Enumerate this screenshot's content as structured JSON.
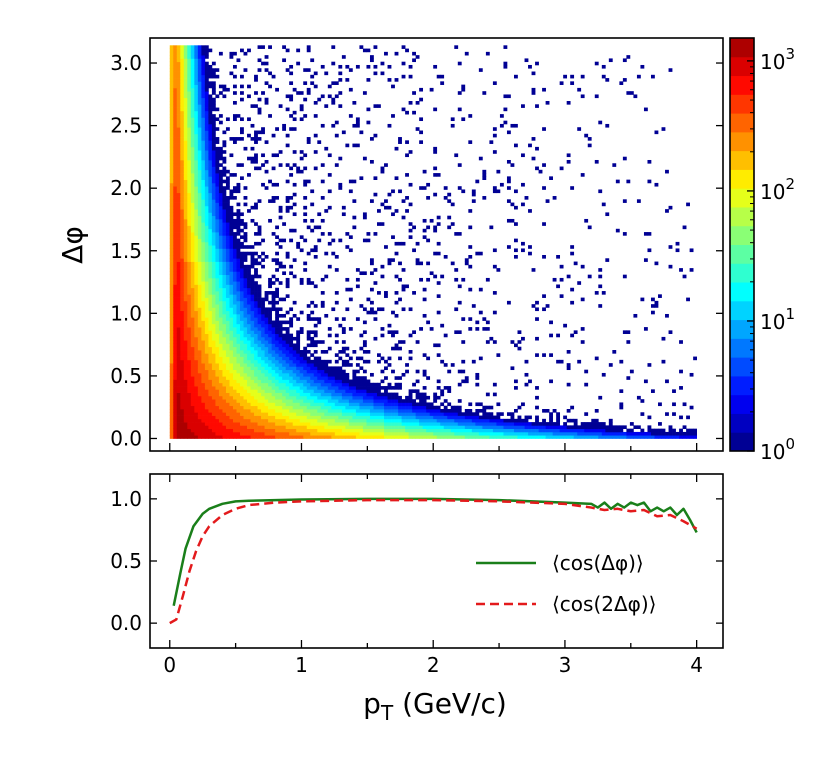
{
  "chart_data": [
    {
      "type": "heatmap",
      "title": "",
      "ylabel": "Δφ",
      "xlabel": "",
      "xlim": [
        -0.15,
        4.2
      ],
      "ylim": [
        -0.1,
        3.2
      ],
      "y_ticks": [
        0.0,
        0.5,
        1.0,
        1.5,
        2.0,
        2.5,
        3.0
      ],
      "y_tick_labels": [
        "0.0",
        "0.5",
        "1.0",
        "1.5",
        "2.0",
        "2.5",
        "3.0"
      ],
      "x_data_range": [
        0.0,
        4.0
      ],
      "y_data_range": [
        0.0,
        3.14159
      ],
      "description_model": "counts concentrated along Δφ ≈ 0.25/pT ridge, log color scale",
      "colorbar": {
        "scale": "log",
        "range": [
          1,
          1500
        ],
        "colormap": "jet",
        "tick_values": [
          1,
          10,
          100,
          1000
        ],
        "tick_base": "10",
        "tick_exponents": [
          "0",
          "1",
          "2",
          "3"
        ]
      }
    },
    {
      "type": "line",
      "xlabel": "p",
      "xlabel_sub": "T",
      "xlabel_rest": " (GeV/c)",
      "ylabel": "",
      "xlim": [
        -0.15,
        4.2
      ],
      "ylim": [
        -0.2,
        1.2
      ],
      "x_ticks": [
        0,
        1,
        2,
        3,
        4
      ],
      "x_tick_labels": [
        "0",
        "1",
        "2",
        "3",
        "4"
      ],
      "y_ticks": [
        0.0,
        0.5,
        1.0
      ],
      "y_tick_labels": [
        "0.0",
        "0.5",
        "1.0"
      ],
      "legend_position": "center-right",
      "series": [
        {
          "name": "⟨cos(Δφ)⟩",
          "color": "#1a7f1a",
          "style": "solid",
          "x": [
            0.03,
            0.08,
            0.12,
            0.18,
            0.25,
            0.3,
            0.4,
            0.5,
            0.6,
            0.8,
            1.0,
            1.5,
            2.0,
            2.5,
            3.0,
            3.2,
            3.25,
            3.3,
            3.35,
            3.4,
            3.45,
            3.5,
            3.55,
            3.6,
            3.65,
            3.7,
            3.75,
            3.8,
            3.85,
            3.9,
            3.95,
            4.0
          ],
          "y": [
            0.14,
            0.4,
            0.6,
            0.78,
            0.88,
            0.92,
            0.96,
            0.98,
            0.985,
            0.99,
            0.995,
            1.0,
            1.0,
            0.99,
            0.97,
            0.96,
            0.93,
            0.97,
            0.92,
            0.96,
            0.93,
            0.97,
            0.95,
            0.97,
            0.9,
            0.93,
            0.9,
            0.93,
            0.87,
            0.92,
            0.83,
            0.73
          ]
        },
        {
          "name": "⟨cos(2Δφ)⟩",
          "color": "#e31a1c",
          "style": "dashed",
          "x": [
            0.0,
            0.05,
            0.1,
            0.15,
            0.2,
            0.25,
            0.3,
            0.4,
            0.5,
            0.6,
            0.8,
            1.0,
            1.5,
            2.0,
            2.5,
            3.0,
            3.2,
            3.3,
            3.4,
            3.5,
            3.6,
            3.7,
            3.8,
            3.9,
            4.0
          ],
          "y": [
            0.0,
            0.03,
            0.22,
            0.42,
            0.58,
            0.7,
            0.78,
            0.87,
            0.92,
            0.95,
            0.97,
            0.98,
            0.99,
            0.99,
            0.98,
            0.96,
            0.93,
            0.91,
            0.92,
            0.9,
            0.91,
            0.86,
            0.87,
            0.82,
            0.76
          ]
        }
      ]
    }
  ]
}
